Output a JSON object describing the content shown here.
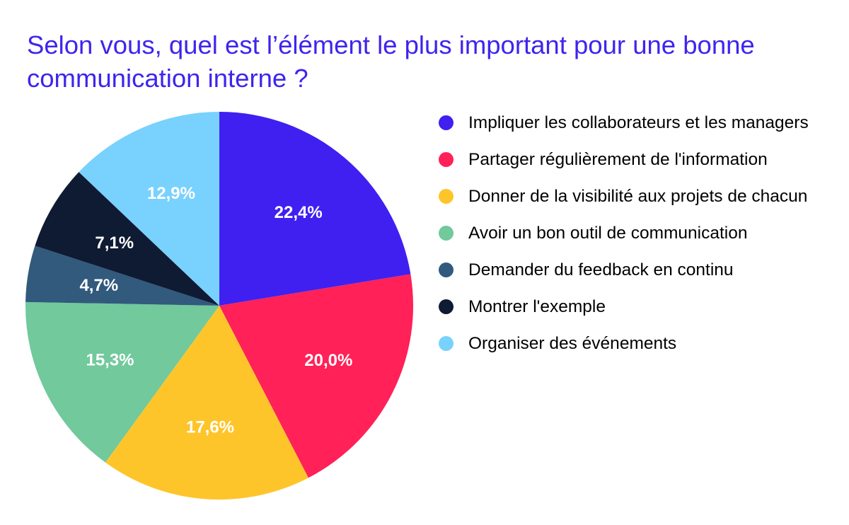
{
  "chart_data": {
    "type": "pie",
    "title": "Selon vous, quel est l’élément le plus important pour une bonne communication interne ?",
    "legend_position": "right",
    "slices": [
      {
        "label": "Impliquer les collaborateurs et les managers",
        "value": 22.4,
        "display": "22,4%",
        "color": "#3f20f0"
      },
      {
        "label": "Partager régulièrement de l'information",
        "value": 20.0,
        "display": "20,0%",
        "color": "#ff2157"
      },
      {
        "label": "Donner de la visibilité aux projets de chacun",
        "value": 17.6,
        "display": "17,6%",
        "color": "#fec52b"
      },
      {
        "label": "Avoir un bon outil de communication",
        "value": 15.3,
        "display": "15,3%",
        "color": "#71c99c"
      },
      {
        "label": "Demander du feedback en continu",
        "value": 4.7,
        "display": "4,7%",
        "color": "#315a7d"
      },
      {
        "label": "Montrer l'exemple",
        "value": 7.1,
        "display": "7,1%",
        "color": "#0f1a33"
      },
      {
        "label": "Organiser des événements",
        "value": 12.9,
        "display": "12,9%",
        "color": "#79d1fe"
      }
    ]
  }
}
